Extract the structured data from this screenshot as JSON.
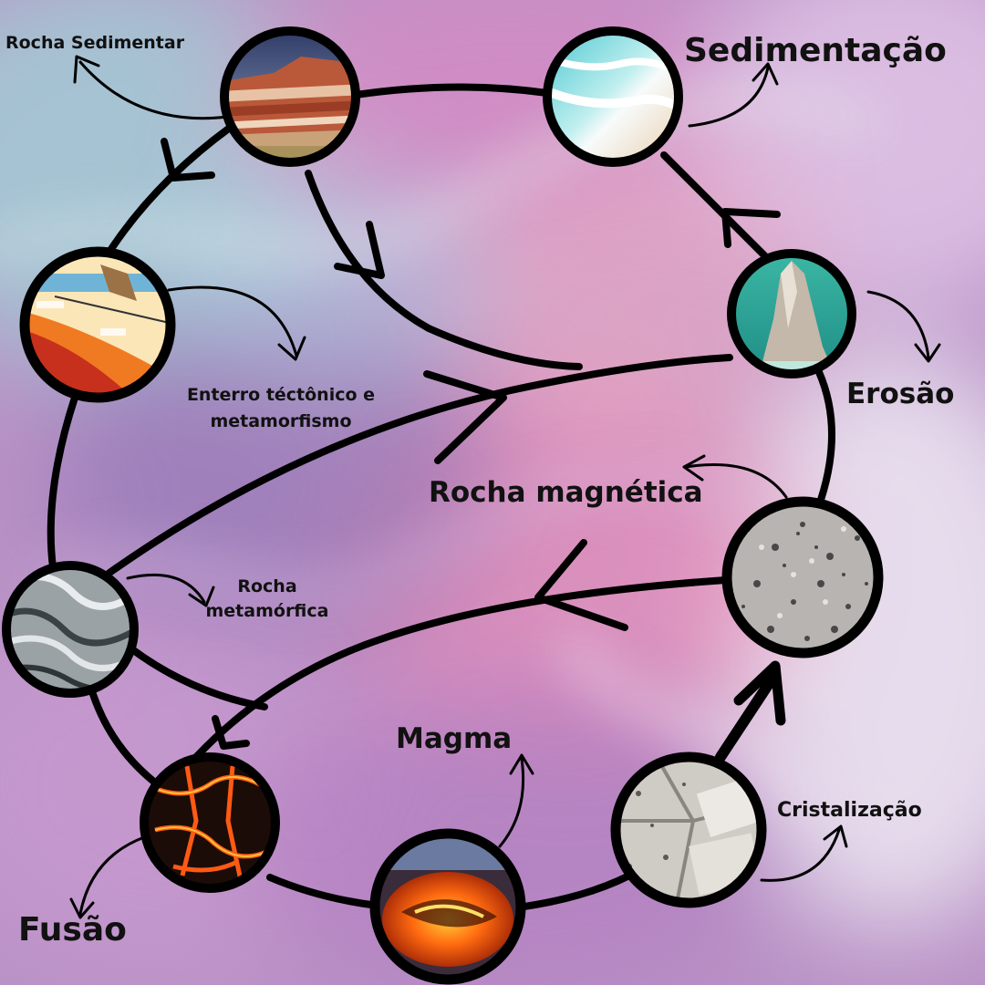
{
  "labels": {
    "rocha_sedimentar": "Rocha Sedimentar",
    "sedimentacao": "Sedimentação",
    "enterro_line1": "Enterro téctônico e",
    "enterro_line2": "metamorfismo",
    "erosao": "Erosão",
    "rocha_magnetica": "Rocha magnética",
    "rocha_metamorfica_line1": "Rocha",
    "rocha_metamorfica_line2": "metamórfica",
    "magma": "Magma",
    "cristalizacao": "Cristalização",
    "fusao": "Fusão"
  },
  "nodes": [
    {
      "id": "sedimentary-rock-photo",
      "depicts": "layered red canyon cliffs"
    },
    {
      "id": "beach-photo",
      "depicts": "waves on sandy beach"
    },
    {
      "id": "tectonic-diagram",
      "depicts": "subduction cross-section"
    },
    {
      "id": "sea-stack-photo",
      "depicts": "eroded rock spire in sea"
    },
    {
      "id": "metamorphic-rock-photo",
      "depicts": "folded gneiss"
    },
    {
      "id": "granite-photo",
      "depicts": "speckled igneous rock"
    },
    {
      "id": "crystallized-rock-photo",
      "depicts": "crystalline granite blocks"
    },
    {
      "id": "lava-photo",
      "depicts": "glowing lava cracks"
    },
    {
      "id": "magma-photo",
      "depicts": "lava lake"
    }
  ],
  "colors": {
    "line": "#000000",
    "background_primary": "#b58dc4",
    "background_pink": "#e6a2c9",
    "background_teal": "#9ed6d6",
    "background_light": "#ece6f2"
  }
}
